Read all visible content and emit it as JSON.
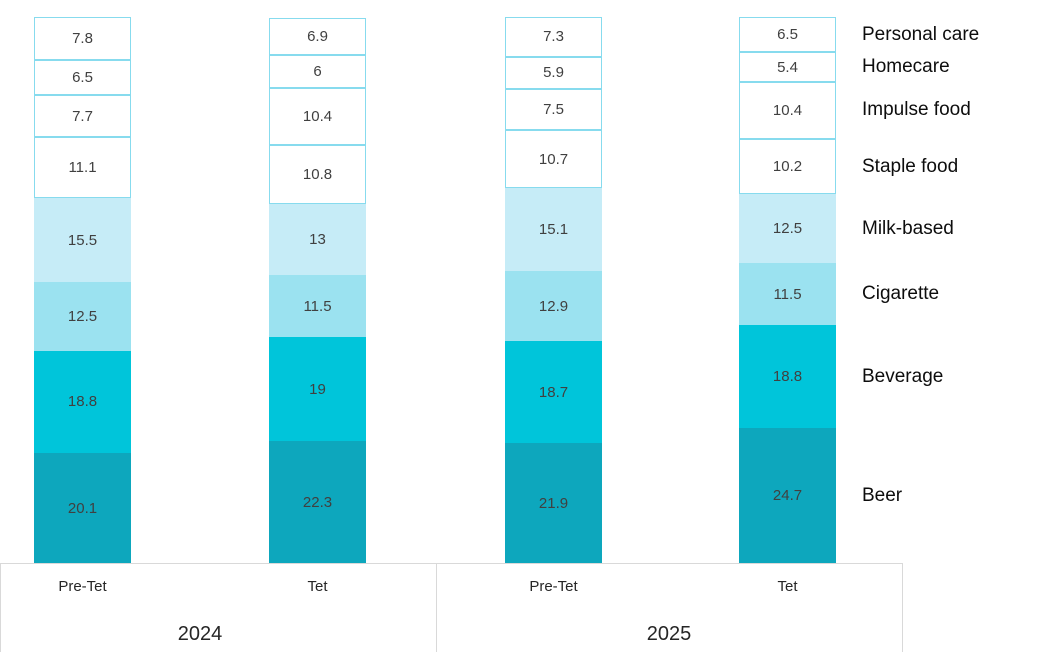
{
  "chart_data": {
    "type": "bar",
    "stacked": true,
    "orientation": "vertical",
    "grid": false,
    "legend_position": "right",
    "categories_top_to_bottom": [
      "Personal care",
      "Homecare",
      "Impulse food",
      "Staple food",
      "Milk-based",
      "Cigarette",
      "Beverage",
      "Beer"
    ],
    "columns": [
      {
        "year": "2024",
        "period": "Pre-Tet",
        "values": [
          7.8,
          6.5,
          7.7,
          11.1,
          15.5,
          12.5,
          18.8,
          20.1
        ]
      },
      {
        "year": "2024",
        "period": "Tet",
        "values": [
          6.9,
          6,
          10.4,
          10.8,
          13,
          11.5,
          19,
          22.3
        ]
      },
      {
        "year": "2025",
        "period": "Pre-Tet",
        "values": [
          7.3,
          5.9,
          7.5,
          10.7,
          15.1,
          12.9,
          18.7,
          21.9
        ]
      },
      {
        "year": "2025",
        "period": "Tet",
        "values": [
          6.5,
          5.4,
          10.4,
          10.2,
          12.5,
          11.5,
          18.8,
          24.7
        ]
      }
    ],
    "year_groups": [
      "2024",
      "2025"
    ],
    "axis_ranges": {
      "value_axis": [
        0,
        100
      ]
    },
    "colors": {
      "segment_fills_top_to_bottom": [
        "#FFFFFF",
        "#FFFFFF",
        "#FFFFFF",
        "#FFFFFF",
        "#C6ECF7",
        "#9BE2F0",
        "#00C5DA",
        "#0DA7BD"
      ],
      "white_segment_border": "#87DBEE",
      "axis_line": "#D9D9D9",
      "value_label_text": "#404040",
      "axis_label_text": "#262626",
      "category_label_text": "#0D0D0D"
    }
  }
}
